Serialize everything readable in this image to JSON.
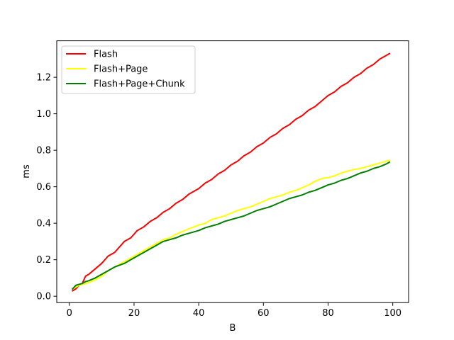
{
  "chart_data": {
    "type": "line",
    "title": "",
    "xlabel": "B",
    "ylabel": "ms",
    "xlim": [
      -3.9,
      104.9
    ],
    "ylim": [
      -0.035,
      1.4
    ],
    "xticks": [
      0,
      20,
      40,
      60,
      80,
      100
    ],
    "xtick_labels": [
      "0",
      "20",
      "40",
      "60",
      "80",
      "100"
    ],
    "yticks": [
      0.0,
      0.2,
      0.4,
      0.6,
      0.8,
      1.0,
      1.2
    ],
    "ytick_labels": [
      "0.0",
      "0.2",
      "0.4",
      "0.6",
      "0.8",
      "1.0",
      "1.2"
    ],
    "grid": false,
    "legend_position": "upper-left",
    "x": [
      1,
      2,
      3,
      4,
      5,
      6,
      8,
      10,
      12,
      14,
      17,
      19,
      21,
      23,
      25,
      27,
      29,
      31,
      33,
      35,
      37,
      40,
      42,
      44,
      46,
      48,
      50,
      52,
      54,
      56,
      58,
      60,
      62,
      64,
      66,
      68,
      70,
      72,
      74,
      76,
      78,
      80,
      82,
      84,
      86,
      88,
      90,
      92,
      94,
      96,
      98,
      99
    ],
    "series": [
      {
        "name": "Flash",
        "color": "#ff0000",
        "values": [
          0.03,
          0.04,
          0.06,
          0.07,
          0.11,
          0.12,
          0.15,
          0.18,
          0.22,
          0.24,
          0.3,
          0.32,
          0.36,
          0.38,
          0.41,
          0.43,
          0.46,
          0.48,
          0.51,
          0.53,
          0.56,
          0.59,
          0.62,
          0.64,
          0.67,
          0.69,
          0.72,
          0.74,
          0.77,
          0.79,
          0.82,
          0.84,
          0.87,
          0.89,
          0.92,
          0.94,
          0.97,
          0.99,
          1.02,
          1.04,
          1.07,
          1.1,
          1.12,
          1.15,
          1.17,
          1.2,
          1.22,
          1.25,
          1.27,
          1.3,
          1.32,
          1.33
        ]
      },
      {
        "name": "Flash+Page",
        "color": "#ffff00",
        "values": [
          0.04,
          0.05,
          0.06,
          0.065,
          0.07,
          0.075,
          0.09,
          0.11,
          0.14,
          0.16,
          0.19,
          0.21,
          0.23,
          0.25,
          0.27,
          0.29,
          0.31,
          0.32,
          0.34,
          0.355,
          0.37,
          0.39,
          0.4,
          0.42,
          0.43,
          0.44,
          0.455,
          0.47,
          0.48,
          0.49,
          0.505,
          0.52,
          0.535,
          0.545,
          0.555,
          0.57,
          0.58,
          0.595,
          0.61,
          0.63,
          0.645,
          0.65,
          0.66,
          0.675,
          0.685,
          0.695,
          0.7,
          0.71,
          0.72,
          0.73,
          0.74,
          0.745
        ]
      },
      {
        "name": "Flash+Page+Chunk",
        "color": "#008000",
        "values": [
          0.04,
          0.06,
          0.065,
          0.07,
          0.08,
          0.085,
          0.1,
          0.12,
          0.14,
          0.16,
          0.18,
          0.2,
          0.22,
          0.24,
          0.26,
          0.28,
          0.3,
          0.31,
          0.32,
          0.335,
          0.345,
          0.36,
          0.375,
          0.385,
          0.395,
          0.41,
          0.42,
          0.43,
          0.44,
          0.455,
          0.47,
          0.48,
          0.49,
          0.505,
          0.52,
          0.535,
          0.545,
          0.555,
          0.57,
          0.58,
          0.595,
          0.61,
          0.62,
          0.635,
          0.645,
          0.66,
          0.675,
          0.685,
          0.7,
          0.71,
          0.725,
          0.735
        ]
      }
    ]
  }
}
